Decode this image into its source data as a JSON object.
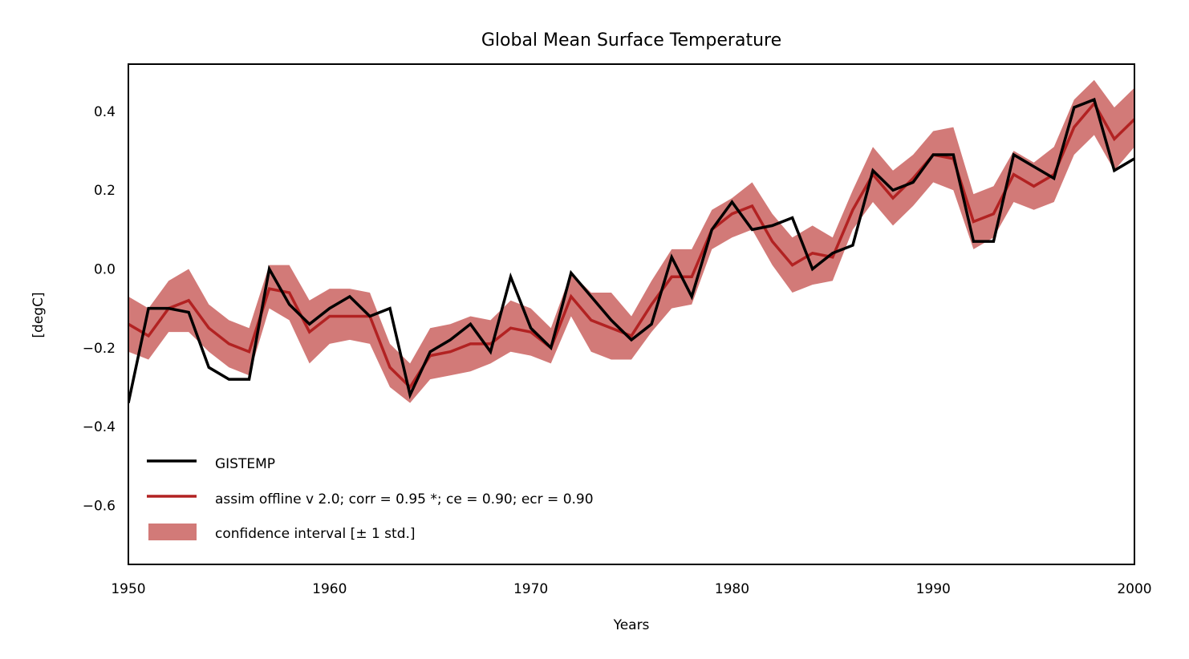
{
  "chart_data": {
    "type": "line",
    "title": "Global Mean Surface Temperature",
    "xlabel": "Years",
    "ylabel": "[degC]",
    "xlim": [
      1950,
      2000
    ],
    "ylim": [
      -0.75,
      0.52
    ],
    "xticks": [
      1950,
      1960,
      1970,
      1980,
      1990,
      2000
    ],
    "yticks": [
      0.4,
      0.2,
      0.0,
      -0.2,
      -0.4,
      -0.6
    ],
    "ytick_labels": [
      "0.4",
      "0.2",
      "0.0",
      "−0.2",
      "−0.4",
      "−0.6"
    ],
    "grid": false,
    "legend_position": "bottom-left",
    "colors": {
      "gistemp": "#000000",
      "assim": "#b22222",
      "band": "#d27a78"
    },
    "x": [
      1950,
      1951,
      1952,
      1953,
      1954,
      1955,
      1956,
      1957,
      1958,
      1959,
      1960,
      1961,
      1962,
      1963,
      1964,
      1965,
      1966,
      1967,
      1968,
      1969,
      1970,
      1971,
      1972,
      1973,
      1974,
      1975,
      1976,
      1977,
      1978,
      1979,
      1980,
      1981,
      1982,
      1983,
      1984,
      1985,
      1986,
      1987,
      1988,
      1989,
      1990,
      1991,
      1992,
      1993,
      1994,
      1995,
      1996,
      1997,
      1998,
      1999,
      2000
    ],
    "series": [
      {
        "name": "GISTEMP",
        "values": [
          -0.34,
          -0.1,
          -0.1,
          -0.11,
          -0.25,
          -0.28,
          -0.28,
          0.0,
          -0.09,
          -0.14,
          -0.1,
          -0.07,
          -0.12,
          -0.1,
          -0.32,
          -0.21,
          -0.18,
          -0.14,
          -0.21,
          -0.02,
          -0.15,
          -0.2,
          -0.01,
          -0.07,
          -0.13,
          -0.18,
          -0.14,
          0.03,
          -0.07,
          0.1,
          0.17,
          0.1,
          0.11,
          0.13,
          0.0,
          0.04,
          0.06,
          0.25,
          0.2,
          0.22,
          0.29,
          0.29,
          0.07,
          0.07,
          0.29,
          0.26,
          0.23,
          0.41,
          0.43,
          0.25,
          0.28
        ]
      },
      {
        "name": "assim offline v 2.0; corr = 0.95 *; ce = 0.90; ecr = 0.90",
        "values": [
          -0.14,
          -0.17,
          -0.1,
          -0.08,
          -0.15,
          -0.19,
          -0.21,
          -0.05,
          -0.06,
          -0.16,
          -0.12,
          -0.12,
          -0.12,
          -0.25,
          -0.3,
          -0.22,
          -0.21,
          -0.19,
          -0.19,
          -0.15,
          -0.16,
          -0.2,
          -0.07,
          -0.13,
          -0.15,
          -0.17,
          -0.09,
          -0.02,
          -0.02,
          0.1,
          0.14,
          0.16,
          0.07,
          0.01,
          0.04,
          0.03,
          0.15,
          0.24,
          0.18,
          0.23,
          0.29,
          0.28,
          0.12,
          0.14,
          0.24,
          0.21,
          0.24,
          0.36,
          0.42,
          0.33,
          0.38
        ]
      }
    ],
    "band": {
      "name": "confidence interval [± 1 std.]",
      "upper": [
        -0.07,
        -0.1,
        -0.03,
        0.0,
        -0.09,
        -0.13,
        -0.15,
        0.01,
        0.01,
        -0.08,
        -0.05,
        -0.05,
        -0.06,
        -0.19,
        -0.24,
        -0.15,
        -0.14,
        -0.12,
        -0.13,
        -0.08,
        -0.1,
        -0.15,
        -0.01,
        -0.06,
        -0.06,
        -0.12,
        -0.03,
        0.05,
        0.05,
        0.15,
        0.18,
        0.22,
        0.14,
        0.08,
        0.11,
        0.08,
        0.2,
        0.31,
        0.25,
        0.29,
        0.35,
        0.36,
        0.19,
        0.21,
        0.3,
        0.27,
        0.31,
        0.43,
        0.48,
        0.41,
        0.46
      ],
      "lower": [
        -0.21,
        -0.23,
        -0.16,
        -0.16,
        -0.21,
        -0.25,
        -0.27,
        -0.1,
        -0.13,
        -0.24,
        -0.19,
        -0.18,
        -0.19,
        -0.3,
        -0.34,
        -0.28,
        -0.27,
        -0.26,
        -0.24,
        -0.21,
        -0.22,
        -0.24,
        -0.12,
        -0.21,
        -0.23,
        -0.23,
        -0.16,
        -0.1,
        -0.09,
        0.05,
        0.08,
        0.1,
        0.01,
        -0.06,
        -0.04,
        -0.03,
        0.1,
        0.17,
        0.11,
        0.16,
        0.22,
        0.2,
        0.05,
        0.08,
        0.17,
        0.15,
        0.17,
        0.29,
        0.34,
        0.25,
        0.31
      ]
    }
  }
}
